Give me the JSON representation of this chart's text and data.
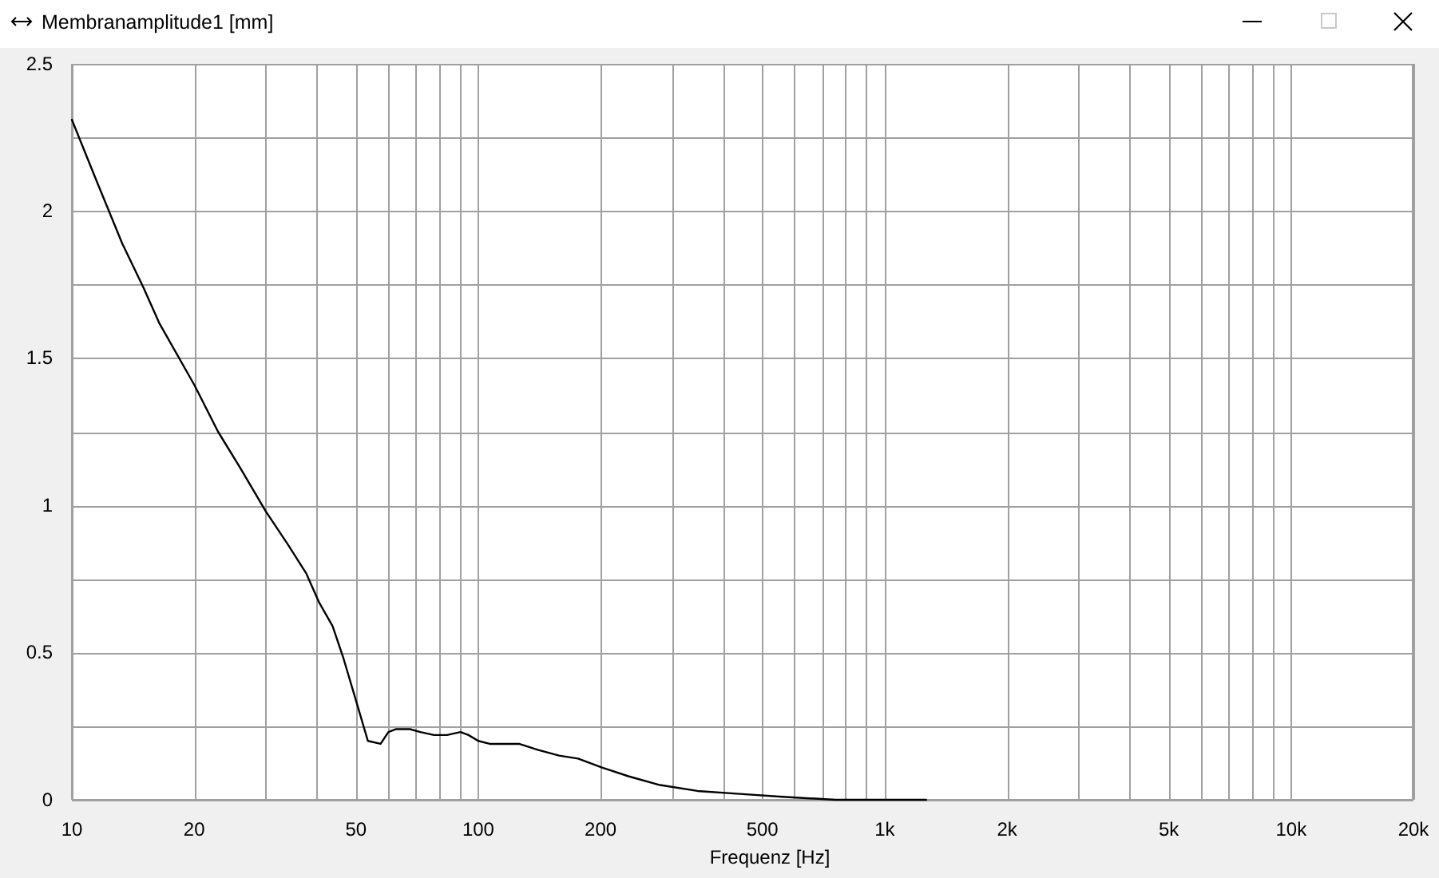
{
  "chart_data": {
    "type": "line",
    "title": "Membranamplitude1 [mm]",
    "xlabel": "Frequenz [Hz]",
    "x": [
      10,
      11.6,
      13.3,
      15,
      16.4,
      20,
      22.9,
      25.9,
      30,
      33.9,
      37.7,
      40.6,
      43.8,
      46.6,
      50.2,
      53.5,
      57.5,
      60.1,
      62.8,
      67.9,
      72,
      77.8,
      83.8,
      90.4,
      94.6,
      100,
      106.7,
      126,
      140,
      158,
      176,
      201,
      234,
      280,
      346,
      440,
      560,
      757,
      1265
    ],
    "values": [
      2.31,
      2.09,
      1.89,
      1.74,
      1.62,
      1.41,
      1.25,
      1.13,
      0.98,
      0.87,
      0.77,
      0.67,
      0.59,
      0.48,
      0.33,
      0.2,
      0.19,
      0.23,
      0.24,
      0.24,
      0.23,
      0.22,
      0.22,
      0.23,
      0.22,
      0.2,
      0.19,
      0.19,
      0.17,
      0.15,
      0.14,
      0.11,
      0.08,
      0.05,
      0.03,
      0.02,
      0.01,
      0,
      0
    ],
    "color": "#000000",
    "xlim": [
      10,
      20000
    ],
    "ylim": [
      0,
      2.5
    ],
    "xticks": [
      10,
      20,
      {
        "value": 30,
        "label": null
      },
      {
        "value": 40,
        "label": null
      },
      50,
      {
        "value": 60,
        "label": null
      },
      {
        "value": 70,
        "label": null
      },
      {
        "value": 80,
        "label": null
      },
      {
        "value": 90,
        "label": null
      },
      100,
      200,
      {
        "value": 300,
        "label": null
      },
      {
        "value": 400,
        "label": null
      },
      500,
      {
        "value": 600,
        "label": null
      },
      {
        "value": 700,
        "label": null
      },
      {
        "value": 800,
        "label": null
      },
      {
        "value": 900,
        "label": null
      },
      {
        "value": 1000,
        "label": "1k"
      },
      {
        "value": 2000,
        "label": "2k"
      },
      {
        "value": 3000,
        "label": null
      },
      {
        "value": 4000,
        "label": null
      },
      {
        "value": 5000,
        "label": "5k"
      },
      {
        "value": 6000,
        "label": null
      },
      {
        "value": 7000,
        "label": null
      },
      {
        "value": 8000,
        "label": null
      },
      {
        "value": 9000,
        "label": null
      },
      {
        "value": 10000,
        "label": "10k"
      },
      {
        "value": 20000,
        "label": "20k"
      }
    ],
    "yticks": [
      0,
      {
        "value": 0.25,
        "label": null
      },
      0.5,
      {
        "value": 0.75,
        "label": null
      },
      1,
      {
        "value": 1.25,
        "label": null
      },
      1.5,
      {
        "value": 1.75,
        "label": null
      },
      2,
      {
        "value": 2.25,
        "label": null
      },
      2.5
    ],
    "log": "x",
    "grid": true
  }
}
